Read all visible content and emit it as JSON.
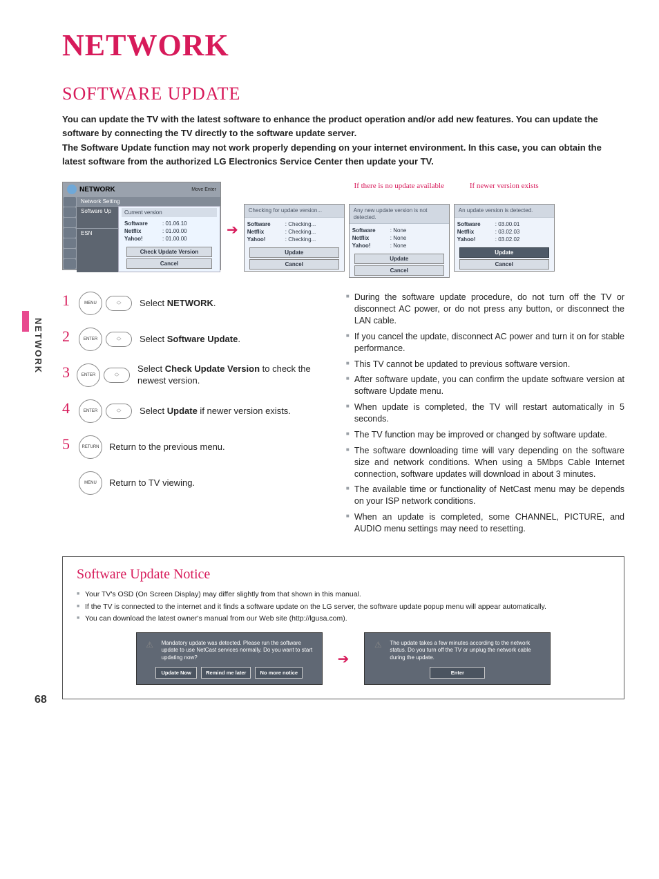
{
  "page_number": "68",
  "side_label": "NETWORK",
  "title": "NETWORK",
  "section_title": "SOFTWARE UPDATE",
  "intro": [
    "You can update the TV with the latest software to enhance the product operation and/or add new features. You can update the software by connecting the TV directly to the software update server.",
    "The Software Update function may not work properly depending on your internet environment. In this case, you can obtain the latest software from the authorized LG Electronics Service Center then update your TV."
  ],
  "colors": {
    "accent": "#d71a5a",
    "pink": "#e84a8f",
    "panel_bg": "#eef3fb",
    "panel_header": "#d1d8e2",
    "menu_bg": "#9aa2ad",
    "button_dark": "#4f5a68"
  },
  "menu_panel": {
    "header_title": "NETWORK",
    "header_hints": "Move    Enter",
    "rows": [
      "Network Setting",
      "Software Up",
      "ESN"
    ],
    "cv_label": "Current version",
    "items": [
      {
        "k": "Software",
        "v": ": 01.06.10"
      },
      {
        "k": "Netflix",
        "v": ": 01.00.00"
      },
      {
        "k": "Yahoo!",
        "v": ": 01.00.00"
      }
    ],
    "btn_check": "Check Update Version",
    "btn_cancel": "Cancel"
  },
  "state_panels": [
    {
      "title": "",
      "status": "Checking for update version...",
      "items": [
        {
          "k": "Software",
          "v": ": Checking..."
        },
        {
          "k": "Netflix",
          "v": ": Checking..."
        },
        {
          "k": "Yahoo!",
          "v": ": Checking..."
        }
      ],
      "btn_primary": "Update",
      "btn_cancel": "Cancel",
      "primary_dark": false
    },
    {
      "title": "If there is no update available",
      "status": "Any new update version is not detected.",
      "items": [
        {
          "k": "Software",
          "v": ": None"
        },
        {
          "k": "Netflix",
          "v": ": None"
        },
        {
          "k": "Yahoo!",
          "v": ": None"
        }
      ],
      "btn_primary": "Update",
      "btn_cancel": "Cancel",
      "primary_dark": false
    },
    {
      "title": "If newer version exists",
      "status": "An update version is detected.",
      "items": [
        {
          "k": "Software",
          "v": ": 03.00.01"
        },
        {
          "k": "Netflix",
          "v": ": 03.02.03"
        },
        {
          "k": "Yahoo!",
          "v": ": 03.02.02"
        }
      ],
      "btn_primary": "Update",
      "btn_cancel": "Cancel",
      "primary_dark": true
    }
  ],
  "steps": [
    {
      "num": "1",
      "icon": "MENU",
      "dpad": true,
      "pre": "Select ",
      "bold": "NETWORK",
      "post": "."
    },
    {
      "num": "2",
      "icon": "ENTER",
      "dpad": true,
      "pre": "Select ",
      "bold": "Software Update",
      "post": "."
    },
    {
      "num": "3",
      "icon": "ENTER",
      "dpad": true,
      "pre": "Select ",
      "bold": "Check Update Version",
      "post": " to check the newest version."
    },
    {
      "num": "4",
      "icon": "ENTER",
      "dpad": true,
      "pre": "Select  ",
      "bold": "Update",
      "post": " if newer version exists."
    },
    {
      "num": "5",
      "icon": "RETURN",
      "dpad": false,
      "pre": "Return to the previous menu.",
      "bold": "",
      "post": ""
    },
    {
      "num": "",
      "icon": "MENU",
      "dpad": false,
      "pre": "Return to TV viewing.",
      "bold": "",
      "post": ""
    }
  ],
  "notes": [
    "During the software update procedure, do not turn off the TV or disconnect AC power, or do not press any button, or disconnect the LAN cable.",
    "If you cancel the update, disconnect AC power and turn it on for stable performance.",
    "This TV cannot be updated to previous software version.",
    "After software update, you can confirm the update software version at software Update menu.",
    "When update is completed, the TV will restart automatically in 5 seconds.",
    "The TV function may be improved or changed by software update.",
    "The software downloading time will vary depending on the software size and network conditions. When using a 5Mbps Cable Internet connection, software updates will download in about 3 minutes.",
    "The available time or functionality of NetCast menu may be depends on your ISP network conditions.",
    "When an update is completed, some CHANNEL, PICTURE, and AUDIO menu settings may need to resetting."
  ],
  "notice": {
    "title": "Software Update Notice",
    "bullets": [
      "Your TV's OSD (On Screen Display) may differ slightly from that shown in this manual.",
      "If the TV is connected to the internet and it finds a software update on the LG server, the software update popup menu will appear automatically.",
      "You can download the latest owner's manual from our Web site (http://lgusa.com)."
    ],
    "popup_left": {
      "text": "Mandatory update was detected. Please run the software update to use NetCast services normally. Do you want to start updating now?",
      "buttons": [
        "Update Now",
        "Remind me later",
        "No more notice"
      ]
    },
    "popup_right": {
      "text": "The update takes a few minutes according to the network status. Do you turn off the TV or unplug the network cable during the update.",
      "buttons": [
        "Enter"
      ]
    }
  }
}
